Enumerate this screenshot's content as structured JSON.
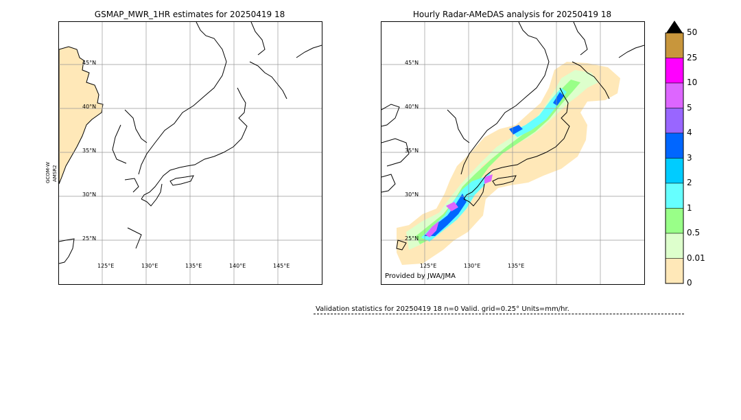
{
  "left_panel": {
    "title": "GSMAP_MWR_1HR estimates for 20250419 18",
    "side_label_1": "GCOM-W",
    "side_label_2": "AMSR2",
    "lat_labels": [
      "45°N",
      "40°N",
      "35°N",
      "30°N",
      "25°N"
    ],
    "lon_labels": [
      "125°E",
      "130°E",
      "135°E",
      "140°E",
      "145°E"
    ]
  },
  "right_panel": {
    "title": "Hourly Radar-AMeDAS analysis for 20250419 18",
    "lat_labels": [
      "45°N",
      "40°N",
      "35°N",
      "30°N",
      "25°N"
    ],
    "lon_labels": [
      "125°E",
      "130°E",
      "135°E"
    ],
    "credit": "Provided by JWA/JMA"
  },
  "colorbar": {
    "labels": [
      "50",
      "25",
      "10",
      "5",
      "4",
      "3",
      "2",
      "1",
      "0.5",
      "0.01",
      "0"
    ],
    "colors": [
      "#c8963c",
      "#ff00ff",
      "#dd66ff",
      "#9966ff",
      "#0066ff",
      "#00ccff",
      "#66ffff",
      "#99ff88",
      "#ddffcc",
      "#ffe8b8"
    ],
    "extend_color": "#000000"
  },
  "validation": {
    "text": "Validation statistics for 20250419 18  n=0 Valid. grid=0.25° Units=mm/hr."
  },
  "chart_data": [
    {
      "type": "heatmap",
      "title": "GSMAP_MWR_1HR estimates for 20250419 18",
      "x_ticks": [
        "125°E",
        "130°E",
        "135°E",
        "140°E",
        "145°E"
      ],
      "y_ticks": [
        "45°N",
        "40°N",
        "35°N",
        "30°N",
        "25°N"
      ],
      "grid": true,
      "note_values": "no precipitation retrieved over Japan; light (0.01 mm/hr) swath edge shaded along western margin"
    },
    {
      "type": "heatmap",
      "title": "Hourly Radar-AMeDAS analysis for 20250419 18",
      "x_ticks": [
        "125°E",
        "130°E",
        "135°E"
      ],
      "y_ticks": [
        "45°N",
        "40°N",
        "35°N",
        "30°N",
        "25°N"
      ],
      "grid": true,
      "colorbar_levels": [
        0,
        0.01,
        0.5,
        1,
        2,
        3,
        4,
        5,
        10,
        25,
        50
      ],
      "units": "mm/hr"
    }
  ]
}
